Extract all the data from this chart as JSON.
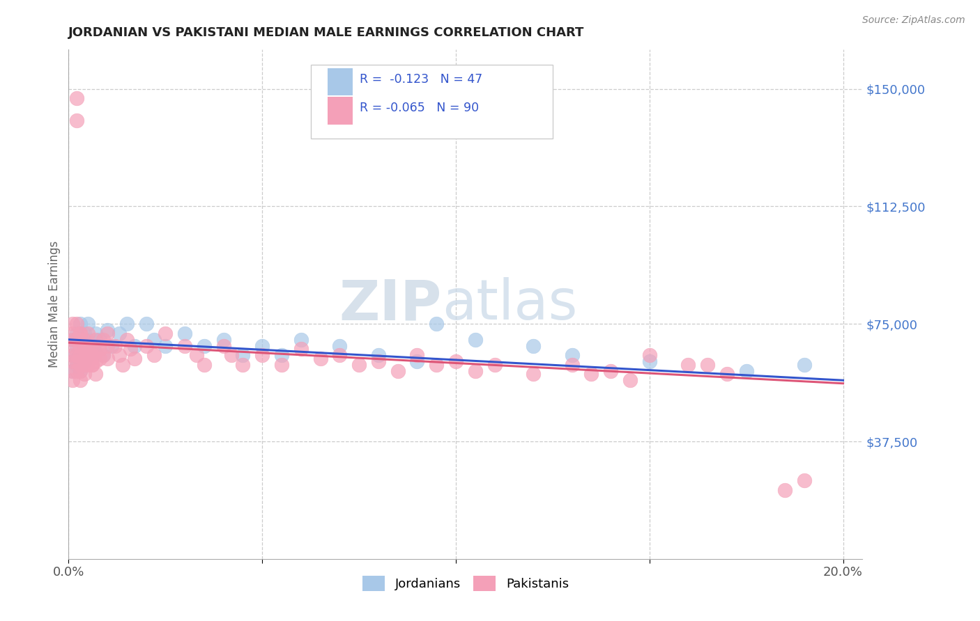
{
  "title": "JORDANIAN VS PAKISTANI MEDIAN MALE EARNINGS CORRELATION CHART",
  "source_text": "Source: ZipAtlas.com",
  "ylabel": "Median Male Earnings",
  "xlim": [
    0.0,
    0.205
  ],
  "ylim": [
    0,
    162500
  ],
  "yticks": [
    37500,
    75000,
    112500,
    150000
  ],
  "ytick_labels": [
    "$37,500",
    "$75,000",
    "$112,500",
    "$150,000"
  ],
  "xticks": [
    0.0,
    0.05,
    0.1,
    0.15,
    0.2
  ],
  "xtick_labels": [
    "0.0%",
    "",
    "",
    "",
    "20.0%"
  ],
  "legend_labels": [
    "Jordanians",
    "Pakistanis"
  ],
  "watermark_zip": "ZIP",
  "watermark_atlas": "atlas",
  "jordan_color": "#a8c8e8",
  "pakistan_color": "#f4a0b8",
  "jordan_line_color": "#3355cc",
  "pakistan_line_color": "#dd5577",
  "background_color": "#ffffff",
  "grid_color": "#cccccc",
  "title_color": "#222222",
  "axis_label_color": "#666666",
  "ytick_color": "#4477cc",
  "jordan_legend_color": "#a8c8e8",
  "pakistan_legend_color": "#f4a0b8",
  "legend_text_color": "#3355cc",
  "jordan_points_x": [
    0.001,
    0.001,
    0.001,
    0.002,
    0.002,
    0.002,
    0.002,
    0.003,
    0.003,
    0.003,
    0.003,
    0.004,
    0.004,
    0.004,
    0.005,
    0.005,
    0.005,
    0.006,
    0.007,
    0.007,
    0.008,
    0.009,
    0.01,
    0.011,
    0.013,
    0.015,
    0.017,
    0.02,
    0.022,
    0.025,
    0.03,
    0.035,
    0.04,
    0.045,
    0.05,
    0.055,
    0.06,
    0.07,
    0.08,
    0.09,
    0.095,
    0.105,
    0.12,
    0.13,
    0.15,
    0.175,
    0.19
  ],
  "jordan_points_y": [
    70000,
    65000,
    60000,
    72000,
    68000,
    64000,
    62000,
    75000,
    70000,
    65000,
    60000,
    72000,
    68000,
    63000,
    75000,
    70000,
    65000,
    68000,
    72000,
    66000,
    70000,
    65000,
    73000,
    68000,
    72000,
    75000,
    68000,
    75000,
    70000,
    68000,
    72000,
    68000,
    70000,
    65000,
    68000,
    65000,
    70000,
    68000,
    65000,
    63000,
    75000,
    70000,
    68000,
    65000,
    63000,
    60000,
    62000
  ],
  "pakistan_points_x": [
    0.001,
    0.001,
    0.001,
    0.001,
    0.001,
    0.001,
    0.001,
    0.001,
    0.002,
    0.002,
    0.002,
    0.002,
    0.002,
    0.002,
    0.003,
    0.003,
    0.003,
    0.003,
    0.003,
    0.003,
    0.004,
    0.004,
    0.004,
    0.004,
    0.004,
    0.005,
    0.005,
    0.005,
    0.005,
    0.006,
    0.006,
    0.006,
    0.007,
    0.007,
    0.007,
    0.008,
    0.008,
    0.009,
    0.009,
    0.01,
    0.01,
    0.01,
    0.012,
    0.013,
    0.014,
    0.015,
    0.016,
    0.017,
    0.02,
    0.022,
    0.025,
    0.03,
    0.033,
    0.035,
    0.04,
    0.042,
    0.045,
    0.05,
    0.055,
    0.06,
    0.065,
    0.07,
    0.075,
    0.08,
    0.085,
    0.09,
    0.095,
    0.1,
    0.105,
    0.11,
    0.12,
    0.13,
    0.135,
    0.14,
    0.145,
    0.15,
    0.16,
    0.165,
    0.17,
    0.002,
    0.003,
    0.004,
    0.005,
    0.006,
    0.007,
    0.185,
    0.19
  ],
  "pakistan_points_y": [
    70000,
    65000,
    63000,
    60000,
    57000,
    68000,
    72000,
    75000,
    147000,
    140000,
    70000,
    65000,
    63000,
    60000,
    72000,
    68000,
    65000,
    62000,
    60000,
    57000,
    70000,
    67000,
    64000,
    62000,
    59000,
    72000,
    68000,
    65000,
    62000,
    68000,
    65000,
    62000,
    70000,
    66000,
    63000,
    67000,
    64000,
    70000,
    65000,
    72000,
    68000,
    64000,
    68000,
    65000,
    62000,
    70000,
    67000,
    64000,
    68000,
    65000,
    72000,
    68000,
    65000,
    62000,
    68000,
    65000,
    62000,
    65000,
    62000,
    67000,
    64000,
    65000,
    62000,
    63000,
    60000,
    65000,
    62000,
    63000,
    60000,
    62000,
    59000,
    62000,
    59000,
    60000,
    57000,
    65000,
    62000,
    62000,
    59000,
    75000,
    72000,
    68000,
    65000,
    62000,
    59000,
    22000,
    25000
  ]
}
